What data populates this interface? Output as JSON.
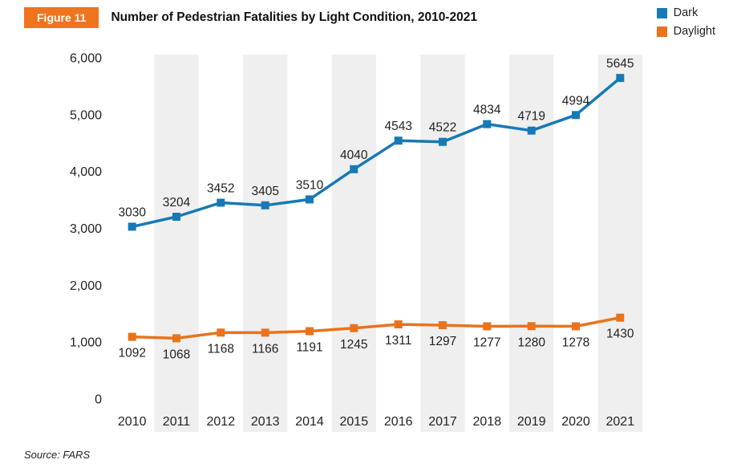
{
  "figure_label": "Figure 11",
  "title": "Number of Pedestrian Fatalities by Light Condition, 2010-2021",
  "source": "Source: FARS",
  "legend": [
    {
      "label": "Dark",
      "color": "#1779b5"
    },
    {
      "label": "Daylight",
      "color": "#e9731c"
    }
  ],
  "colors": {
    "badge_orange": "#f0731d",
    "band_gray": "#efefef",
    "text": "#231f20"
  },
  "chart_data": {
    "type": "line",
    "categories": [
      "2010",
      "2011",
      "2012",
      "2013",
      "2014",
      "2015",
      "2016",
      "2017",
      "2018",
      "2019",
      "2020",
      "2021"
    ],
    "series": [
      {
        "name": "Dark",
        "color": "#1779b5",
        "values": [
          3030,
          3204,
          3452,
          3405,
          3510,
          4040,
          4543,
          4522,
          4834,
          4719,
          4994,
          5645
        ]
      },
      {
        "name": "Daylight",
        "color": "#e9731c",
        "values": [
          1092,
          1068,
          1168,
          1166,
          1191,
          1245,
          1311,
          1297,
          1277,
          1280,
          1278,
          1430
        ]
      }
    ],
    "title": "Number of Pedestrian Fatalities by Light Condition, 2010-2021",
    "xlabel": "",
    "ylabel": "",
    "ylim": [
      0,
      6000
    ],
    "ytick_values": [
      6000,
      5000,
      4000,
      3000,
      2000,
      1000,
      0
    ],
    "ytick_labels": [
      "6,000",
      "5,000",
      "4,000",
      "3,000",
      "2,000",
      "1,000",
      "0"
    ],
    "grid": false,
    "legend_position": "top-right",
    "band_fill": "#efefef",
    "marker": "square",
    "data_labels": true
  }
}
